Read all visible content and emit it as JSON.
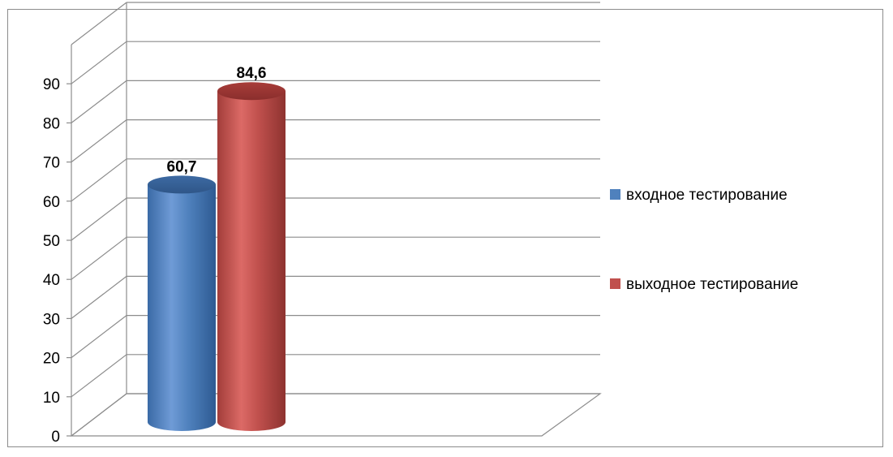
{
  "chart_data": {
    "type": "bar",
    "style": "3d-cylinder",
    "categories": [
      ""
    ],
    "series": [
      {
        "name": "входное тестирование",
        "values": [
          60.7
        ],
        "label": "60,7",
        "color": "#4f81bd"
      },
      {
        "name": "выходное тестирование",
        "values": [
          84.6
        ],
        "label": "84,6",
        "color": "#c0504d"
      }
    ],
    "yticks": [
      "0",
      "10",
      "20",
      "30",
      "40",
      "50",
      "60",
      "70",
      "80",
      "90"
    ],
    "ylim": [
      0,
      100
    ],
    "grid": true,
    "legend": "right"
  }
}
